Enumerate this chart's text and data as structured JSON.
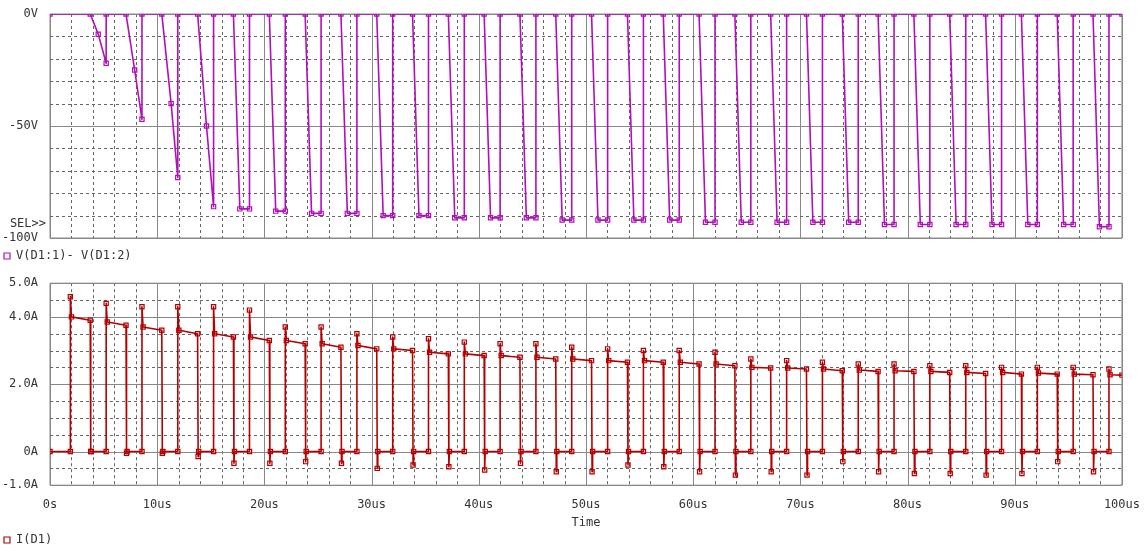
{
  "chart_data": [
    {
      "type": "line",
      "legend": "bottom left",
      "grid": true,
      "marker": "square",
      "tick_labels": "y",
      "annotations": [
        "SEL>>"
      ],
      "xlim": [
        0,
        100
      ],
      "xticks": [
        0,
        2,
        4,
        6,
        8,
        10,
        12,
        14,
        16,
        18,
        20,
        22,
        24,
        26,
        28,
        30,
        32,
        34,
        36,
        38,
        40,
        42,
        44,
        46,
        48,
        50,
        52,
        54,
        56,
        58,
        60,
        62,
        64,
        66,
        68,
        70,
        72,
        74,
        76,
        78,
        80,
        82,
        84,
        86,
        88,
        90,
        92,
        94,
        96,
        98,
        100
      ],
      "ylim": [
        -100,
        0
      ],
      "yticks": [
        {
          "value": 0,
          "label": "0V"
        },
        {
          "value": -10,
          "label": null
        },
        {
          "value": -20,
          "label": null
        },
        {
          "value": -30,
          "label": null
        },
        {
          "value": -40,
          "label": null
        },
        {
          "value": -50,
          "label": "-50V"
        },
        {
          "value": -60,
          "label": null
        },
        {
          "value": -70,
          "label": null
        },
        {
          "value": -80,
          "label": null
        },
        {
          "value": -90,
          "label": null
        },
        {
          "value": -100,
          "label": "-100V"
        }
      ],
      "series": [
        {
          "name": "V(D1:1)- V(D1:2)",
          "color": "#b010b8",
          "x": [
            0,
            3.75,
            4.5,
            5.24,
            5.24,
            7.09,
            7.9,
            8.58,
            8.58,
            10.43,
            11.3,
            11.92,
            11.92,
            13.77,
            14.6,
            15.26,
            15.26,
            17.11,
            17.71,
            18.61,
            18.61,
            20.46,
            21.06,
            21.95,
            21.95,
            23.8,
            24.4,
            25.29,
            25.29,
            27.14,
            27.74,
            28.63,
            28.63,
            30.48,
            31.08,
            31.97,
            31.97,
            33.82,
            34.42,
            35.31,
            35.31,
            37.16,
            37.76,
            38.65,
            38.65,
            40.5,
            41.1,
            41.99,
            41.99,
            43.84,
            44.44,
            45.33,
            45.33,
            47.18,
            47.78,
            48.67,
            48.67,
            50.52,
            51.12,
            52.02,
            52.02,
            53.87,
            54.47,
            55.36,
            55.36,
            57.21,
            57.81,
            58.7,
            58.7,
            60.55,
            61.15,
            62.04,
            62.04,
            63.89,
            64.49,
            65.38,
            65.38,
            67.23,
            67.83,
            68.72,
            68.72,
            70.57,
            71.17,
            72.06,
            72.06,
            73.91,
            74.51,
            75.4,
            75.4,
            77.25,
            77.85,
            78.74,
            78.74,
            80.59,
            81.19,
            82.08,
            82.08,
            83.93,
            84.53,
            85.43,
            85.43,
            87.28,
            87.88,
            88.77,
            88.77,
            90.62,
            91.22,
            92.11,
            92.11,
            93.96,
            94.56,
            95.45,
            95.45,
            97.3,
            97.9,
            98.79,
            98.79,
            100
          ],
          "values": [
            0,
            0,
            -9,
            -22,
            0,
            0,
            -25,
            -47,
            0,
            0,
            -40,
            -73,
            0,
            0,
            -50,
            -86,
            0,
            0,
            -87,
            -87,
            0,
            0,
            -88,
            -88,
            0,
            0,
            -89,
            -89,
            0,
            0,
            -89,
            -89,
            0,
            0,
            -90,
            -90,
            0,
            0,
            -90,
            -90,
            0,
            0,
            -91,
            -91,
            0,
            0,
            -91,
            -91,
            0,
            0,
            -91,
            -91,
            0,
            0,
            -92,
            -92,
            0,
            0,
            -92,
            -92,
            0,
            0,
            -92,
            -92,
            0,
            0,
            -92,
            -92,
            0,
            0,
            -93,
            -93,
            0,
            0,
            -93,
            -93,
            0,
            0,
            -93,
            -93,
            0,
            0,
            -93,
            -93,
            0,
            0,
            -93,
            -93,
            0,
            0,
            -94,
            -94,
            0,
            0,
            -94,
            -94,
            0,
            0,
            -94,
            -94,
            0,
            0,
            -94,
            -94,
            0,
            0,
            -94,
            -94,
            0,
            0,
            -94,
            -94,
            0,
            0,
            -95,
            -95,
            0,
            0
          ]
        }
      ]
    },
    {
      "type": "line",
      "legend": "bottom left",
      "grid": true,
      "marker": "square",
      "xlabel": "Time",
      "xlim": [
        0,
        100
      ],
      "xticks": [
        {
          "value": 0,
          "label": "0s"
        },
        {
          "value": 2,
          "label": null
        },
        {
          "value": 4,
          "label": null
        },
        {
          "value": 6,
          "label": null
        },
        {
          "value": 8,
          "label": null
        },
        {
          "value": 10,
          "label": "10us"
        },
        {
          "value": 12,
          "label": null
        },
        {
          "value": 14,
          "label": null
        },
        {
          "value": 16,
          "label": null
        },
        {
          "value": 18,
          "label": null
        },
        {
          "value": 20,
          "label": "20us"
        },
        {
          "value": 22,
          "label": null
        },
        {
          "value": 24,
          "label": null
        },
        {
          "value": 26,
          "label": null
        },
        {
          "value": 28,
          "label": null
        },
        {
          "value": 30,
          "label": "30us"
        },
        {
          "value": 32,
          "label": null
        },
        {
          "value": 34,
          "label": null
        },
        {
          "value": 36,
          "label": null
        },
        {
          "value": 38,
          "label": null
        },
        {
          "value": 40,
          "label": "40us"
        },
        {
          "value": 42,
          "label": null
        },
        {
          "value": 44,
          "label": null
        },
        {
          "value": 46,
          "label": null
        },
        {
          "value": 48,
          "label": null
        },
        {
          "value": 50,
          "label": "50us"
        },
        {
          "value": 52,
          "label": null
        },
        {
          "value": 54,
          "label": null
        },
        {
          "value": 56,
          "label": null
        },
        {
          "value": 58,
          "label": null
        },
        {
          "value": 60,
          "label": "60us"
        },
        {
          "value": 62,
          "label": null
        },
        {
          "value": 64,
          "label": null
        },
        {
          "value": 66,
          "label": null
        },
        {
          "value": 68,
          "label": null
        },
        {
          "value": 70,
          "label": "70us"
        },
        {
          "value": 72,
          "label": null
        },
        {
          "value": 74,
          "label": null
        },
        {
          "value": 76,
          "label": null
        },
        {
          "value": 78,
          "label": null
        },
        {
          "value": 80,
          "label": "80us"
        },
        {
          "value": 82,
          "label": null
        },
        {
          "value": 84,
          "label": null
        },
        {
          "value": 86,
          "label": null
        },
        {
          "value": 88,
          "label": null
        },
        {
          "value": 90,
          "label": "90us"
        },
        {
          "value": 92,
          "label": null
        },
        {
          "value": 94,
          "label": null
        },
        {
          "value": 96,
          "label": null
        },
        {
          "value": 98,
          "label": null
        },
        {
          "value": 100,
          "label": "100us"
        }
      ],
      "ylim": [
        -1,
        5
      ],
      "yticks": [
        {
          "value": -1,
          "label": "-1.0A"
        },
        {
          "value": -0.5,
          "label": null
        },
        {
          "value": 0,
          "label": "0A"
        },
        {
          "value": 0.5,
          "label": null
        },
        {
          "value": 1,
          "label": null
        },
        {
          "value": 1.5,
          "label": null
        },
        {
          "value": 2,
          "label": "2.0A"
        },
        {
          "value": 2.5,
          "label": null
        },
        {
          "value": 3,
          "label": null
        },
        {
          "value": 3.5,
          "label": null
        },
        {
          "value": 4,
          "label": "4.0A"
        },
        {
          "value": 4.5,
          "label": null
        },
        {
          "value": 5,
          "label": "5.0A"
        }
      ],
      "series": [
        {
          "name": "I(D1)",
          "color": "#b40000",
          "x": [
            0,
            1.9,
            1.9,
            2.0,
            3.75,
            3.8,
            3.85,
            5.24,
            5.24,
            5.34,
            7.09,
            7.14,
            7.19,
            8.58,
            8.58,
            8.68,
            10.43,
            10.48,
            10.53,
            11.92,
            11.92,
            12.02,
            13.77,
            13.82,
            13.87,
            15.26,
            15.26,
            15.36,
            17.11,
            17.16,
            17.21,
            18.61,
            18.61,
            18.71,
            20.46,
            20.51,
            20.56,
            21.95,
            21.95,
            22.05,
            23.8,
            23.85,
            23.9,
            25.29,
            25.29,
            25.39,
            27.14,
            27.19,
            27.24,
            28.63,
            28.63,
            28.73,
            30.48,
            30.53,
            30.58,
            31.97,
            31.97,
            32.07,
            33.82,
            33.87,
            33.92,
            35.31,
            35.31,
            35.41,
            37.16,
            37.21,
            37.26,
            38.65,
            38.65,
            38.75,
            40.5,
            40.55,
            40.6,
            41.99,
            41.99,
            42.09,
            43.84,
            43.89,
            43.94,
            45.33,
            45.33,
            45.43,
            47.18,
            47.23,
            47.28,
            48.67,
            48.67,
            48.77,
            50.52,
            50.57,
            50.62,
            52.02,
            52.02,
            52.12,
            53.87,
            53.92,
            53.97,
            55.36,
            55.36,
            55.46,
            57.21,
            57.26,
            57.31,
            58.7,
            58.7,
            58.8,
            60.55,
            60.6,
            60.65,
            62.04,
            62.04,
            62.14,
            63.89,
            63.94,
            63.99,
            65.38,
            65.38,
            65.48,
            67.23,
            67.28,
            67.33,
            68.72,
            68.72,
            68.82,
            70.57,
            70.62,
            70.67,
            72.06,
            72.06,
            72.16,
            73.91,
            73.96,
            74.01,
            75.4,
            75.4,
            75.5,
            77.25,
            77.3,
            77.35,
            78.74,
            78.74,
            78.84,
            80.59,
            80.64,
            80.69,
            82.08,
            82.08,
            82.18,
            83.93,
            83.98,
            84.03,
            85.43,
            85.43,
            85.53,
            87.28,
            87.33,
            87.38,
            88.77,
            88.77,
            88.87,
            90.62,
            90.67,
            90.72,
            92.11,
            92.11,
            92.21,
            93.96,
            94.01,
            94.06,
            95.45,
            95.45,
            95.55,
            97.3,
            97.35,
            97.4,
            98.79,
            98.79,
            98.89,
            100
          ],
          "values": [
            0,
            0,
            4.6,
            4.0,
            3.9,
            0,
            0,
            0,
            4.4,
            3.85,
            3.75,
            -0.05,
            0,
            0,
            4.3,
            3.7,
            3.6,
            -0.05,
            0,
            0,
            4.3,
            3.6,
            3.5,
            -0.15,
            0,
            0,
            4.3,
            3.5,
            3.4,
            -0.35,
            0,
            0,
            4.2,
            3.4,
            3.3,
            -0.35,
            0,
            0,
            3.7,
            3.3,
            3.2,
            -0.3,
            0,
            0,
            3.7,
            3.2,
            3.1,
            -0.35,
            0,
            0,
            3.5,
            3.15,
            3.05,
            -0.5,
            0,
            0,
            3.4,
            3.05,
            3.0,
            -0.4,
            0,
            0,
            3.35,
            2.95,
            2.9,
            -0.45,
            0,
            0,
            3.25,
            2.9,
            2.85,
            -0.55,
            0,
            0,
            3.2,
            2.85,
            2.8,
            -0.35,
            0,
            0,
            3.2,
            2.8,
            2.75,
            -0.6,
            0,
            0,
            3.1,
            2.75,
            2.7,
            -0.6,
            0,
            0,
            3.05,
            2.7,
            2.65,
            -0.4,
            0,
            0,
            3.0,
            2.7,
            2.65,
            -0.45,
            0,
            0,
            3.0,
            2.65,
            2.6,
            -0.6,
            0,
            0,
            2.95,
            2.6,
            2.55,
            -0.7,
            0,
            0,
            2.75,
            2.5,
            2.48,
            -0.6,
            0,
            0,
            2.7,
            2.48,
            2.45,
            -0.7,
            0,
            0,
            2.65,
            2.45,
            2.4,
            -0.3,
            0,
            0,
            2.6,
            2.42,
            2.38,
            -0.6,
            0,
            0,
            2.6,
            2.4,
            2.38,
            -0.65,
            0,
            0,
            2.55,
            2.38,
            2.35,
            -0.65,
            0,
            0,
            2.55,
            2.35,
            2.32,
            -0.7,
            0,
            0,
            2.5,
            2.35,
            2.3,
            -0.65,
            0,
            0,
            2.5,
            2.33,
            2.3,
            -0.3,
            0,
            0,
            2.5,
            2.3,
            2.28,
            -0.6,
            0,
            0,
            2.45,
            2.28,
            2.27
          ]
        }
      ]
    }
  ]
}
